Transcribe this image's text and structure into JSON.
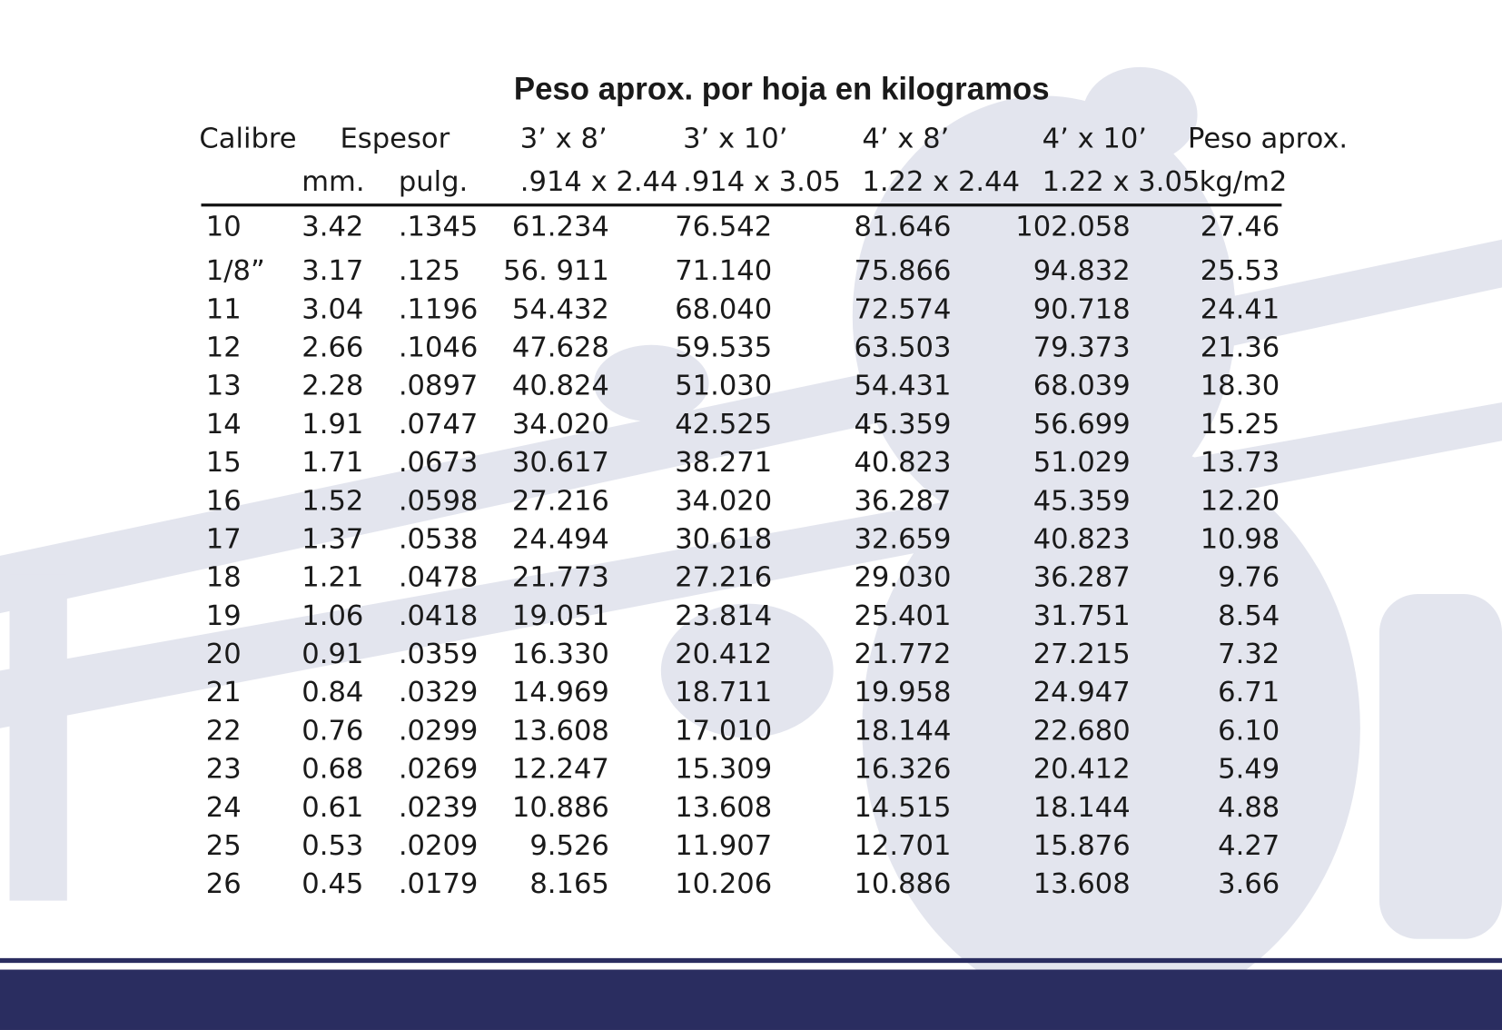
{
  "title": "Peso aprox. por hoja en kilogramos",
  "table": {
    "header_rows": [
      [
        "Calibre",
        "Espesor",
        "3’ x 8’",
        "3’ x 10’",
        "4’ x 8’",
        "4’ x 10’",
        "Peso aprox."
      ],
      [
        "mm.",
        "pulg.",
        ".914 x 2.44",
        ".914 x 3.05",
        "1.22 x 2.44",
        "1.22 x 3.05",
        "kg/m2"
      ]
    ],
    "rows": [
      [
        "10",
        "3.42",
        ".1345",
        "61.234",
        "76.542",
        "81.646",
        "102.058",
        "27.46"
      ],
      [
        "1/8”",
        "3.17",
        ".125",
        "56. 911",
        "71.140",
        "75.866",
        "94.832",
        "25.53"
      ],
      [
        "11",
        "3.04",
        ".1196",
        "54.432",
        "68.040",
        "72.574",
        "90.718",
        "24.41"
      ],
      [
        "12",
        "2.66",
        ".1046",
        "47.628",
        "59.535",
        "63.503",
        "79.373",
        "21.36"
      ],
      [
        "13",
        "2.28",
        ".0897",
        "40.824",
        "51.030",
        "54.431",
        "68.039",
        "18.30"
      ],
      [
        "14",
        "1.91",
        ".0747",
        "34.020",
        "42.525",
        "45.359",
        "56.699",
        "15.25"
      ],
      [
        "15",
        "1.71",
        ".0673",
        "30.617",
        "38.271",
        "40.823",
        "51.029",
        "13.73"
      ],
      [
        "16",
        "1.52",
        ".0598",
        "27.216",
        "34.020",
        "36.287",
        "45.359",
        "12.20"
      ],
      [
        "17",
        "1.37",
        ".0538",
        "24.494",
        "30.618",
        "32.659",
        "40.823",
        "10.98"
      ],
      [
        "18",
        "1.21",
        ".0478",
        "21.773",
        "27.216",
        "29.030",
        "36.287",
        "9.76"
      ],
      [
        "19",
        "1.06",
        ".0418",
        "19.051",
        "23.814",
        "25.401",
        "31.751",
        "8.54"
      ],
      [
        "20",
        "0.91",
        ".0359",
        "16.330",
        "20.412",
        "21.772",
        "27.215",
        "7.32"
      ],
      [
        "21",
        "0.84",
        ".0329",
        "14.969",
        "18.711",
        "19.958",
        "24.947",
        "6.71"
      ],
      [
        "22",
        "0.76",
        ".0299",
        "13.608",
        "17.010",
        "18.144",
        "22.680",
        "6.10"
      ],
      [
        "23",
        "0.68",
        ".0269",
        "12.247",
        "15.309",
        "16.326",
        "20.412",
        "5.49"
      ],
      [
        "24",
        "0.61",
        ".0239",
        "10.886",
        "13.608",
        "14.515",
        "18.144",
        "4.88"
      ],
      [
        "25",
        "0.53",
        ".0209",
        "9.526",
        "11.907",
        "12.701",
        "15.876",
        "4.27"
      ],
      [
        "26",
        "0.45",
        ".0179",
        "8.165",
        "10.206",
        "10.886",
        "13.608",
        "3.66"
      ]
    ]
  }
}
